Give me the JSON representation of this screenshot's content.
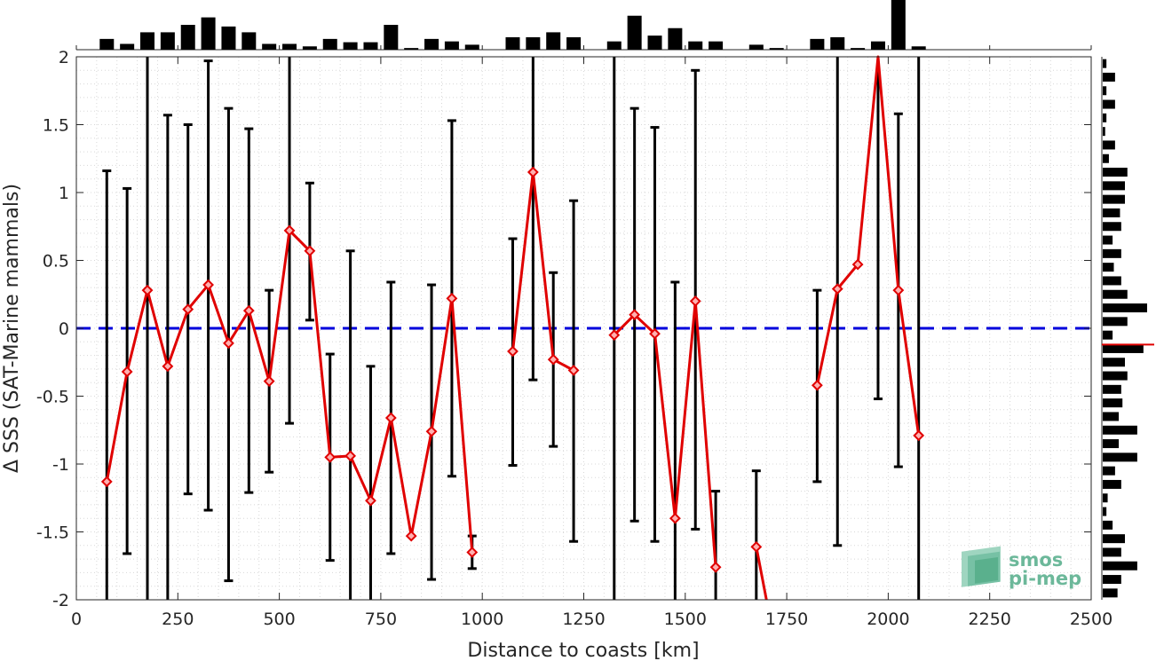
{
  "chart_data": {
    "type": "line",
    "xlabel": "Distance to coasts [km]",
    "ylabel": "Δ SSS (SAT-Marine mammals)",
    "xlim": [
      0,
      2500
    ],
    "ylim": [
      -2,
      2
    ],
    "xticks": [
      0,
      250,
      500,
      750,
      1000,
      1250,
      1500,
      1750,
      2000,
      2250,
      2500
    ],
    "xtick_labels": [
      "0",
      "250",
      "500",
      "750",
      "1000",
      "1250",
      "1500",
      "1750",
      "2000",
      "2250",
      "2500"
    ],
    "yticks": [
      -2,
      -1.5,
      -1,
      -0.5,
      0,
      0.5,
      1,
      1.5,
      2
    ],
    "ytick_labels": [
      "-2",
      "-1.5",
      "-1",
      "-0.5",
      "0",
      "0.5",
      "1",
      "1.5",
      "2"
    ],
    "grid": true,
    "reference_line": {
      "y": 0,
      "color": "#0000dd",
      "style": "dashed"
    },
    "series": [
      {
        "points": [
          {
            "x": 75,
            "y": -1.13,
            "lo": -2.0,
            "hi": 1.16
          },
          {
            "x": 125,
            "y": -0.32,
            "lo": -1.66,
            "hi": 1.03
          },
          {
            "x": 175,
            "y": 0.28,
            "lo": -2.0,
            "hi": 2.0
          },
          {
            "x": 225,
            "y": -0.28,
            "lo": -2.0,
            "hi": 1.57
          },
          {
            "x": 275,
            "y": 0.14,
            "lo": -1.22,
            "hi": 1.5
          },
          {
            "x": 325,
            "y": 0.32,
            "lo": -1.34,
            "hi": 1.97
          },
          {
            "x": 375,
            "y": -0.11,
            "lo": -1.86,
            "hi": 1.62
          },
          {
            "x": 425,
            "y": 0.13,
            "lo": -1.21,
            "hi": 1.47
          },
          {
            "x": 475,
            "y": -0.39,
            "lo": -1.06,
            "hi": 0.28
          },
          {
            "x": 525,
            "y": 0.72,
            "lo": -0.7,
            "hi": 2.0
          },
          {
            "x": 575,
            "y": 0.57,
            "lo": 0.06,
            "hi": 1.07
          },
          {
            "x": 625,
            "y": -0.95,
            "lo": -1.71,
            "hi": -0.19
          },
          {
            "x": 675,
            "y": -0.94,
            "lo": -2.0,
            "hi": 0.57
          },
          {
            "x": 725,
            "y": -1.27,
            "lo": -2.0,
            "hi": -0.28
          },
          {
            "x": 775,
            "y": -0.66,
            "lo": -1.66,
            "hi": 0.34
          },
          {
            "x": 825,
            "y": -1.53,
            "lo": null,
            "hi": null
          },
          {
            "x": 875,
            "y": -0.76,
            "lo": -1.85,
            "hi": 0.32
          },
          {
            "x": 925,
            "y": 0.22,
            "lo": -1.09,
            "hi": 1.53
          },
          {
            "x": 975,
            "y": -1.65,
            "lo": -1.77,
            "hi": -1.53
          },
          {
            "x": 1075,
            "y": -0.17,
            "lo": -1.01,
            "hi": 0.66
          },
          {
            "x": 1125,
            "y": 1.15,
            "lo": -0.38,
            "hi": 2.0
          },
          {
            "x": 1175,
            "y": -0.23,
            "lo": -0.87,
            "hi": 0.41
          },
          {
            "x": 1225,
            "y": -0.31,
            "lo": -1.57,
            "hi": 0.94
          },
          {
            "x": 1325,
            "y": -0.05,
            "lo": -2.0,
            "hi": 2.0
          },
          {
            "x": 1375,
            "y": 0.1,
            "lo": -1.42,
            "hi": 1.62
          },
          {
            "x": 1425,
            "y": -0.04,
            "lo": -1.57,
            "hi": 1.48
          },
          {
            "x": 1475,
            "y": -1.4,
            "lo": -2.0,
            "hi": 0.34
          },
          {
            "x": 1525,
            "y": 0.2,
            "lo": -1.48,
            "hi": 1.9
          },
          {
            "x": 1575,
            "y": -1.76,
            "lo": -2.0,
            "hi": -1.2
          },
          {
            "x": 1675,
            "y": -1.61,
            "lo": -2.0,
            "hi": -1.05
          },
          {
            "x": 1700,
            "y": -2.0,
            "lo": null,
            "hi": null
          },
          {
            "x": 1825,
            "y": -0.42,
            "lo": -1.13,
            "hi": 0.28
          },
          {
            "x": 1875,
            "y": 0.29,
            "lo": -1.6,
            "hi": 2.0
          },
          {
            "x": 1925,
            "y": 0.47,
            "lo": null,
            "hi": null
          },
          {
            "x": 1975,
            "y": 2.0,
            "lo": -0.52,
            "hi": 2.0
          },
          {
            "x": 2025,
            "y": 0.28,
            "lo": -1.02,
            "hi": 1.58
          },
          {
            "x": 2075,
            "y": -0.79,
            "lo": -2.0,
            "hi": 2.0
          }
        ],
        "color": "#e00000"
      }
    ],
    "segments": [
      [
        0,
        18
      ],
      [
        19,
        22
      ],
      [
        23,
        28
      ],
      [
        29,
        30
      ],
      [
        31,
        36
      ]
    ],
    "top_histogram": {
      "x": [
        75,
        125,
        175,
        225,
        275,
        325,
        375,
        425,
        475,
        525,
        575,
        625,
        675,
        725,
        775,
        825,
        875,
        925,
        975,
        1075,
        1125,
        1175,
        1225,
        1325,
        1375,
        1425,
        1475,
        1525,
        1575,
        1675,
        1725,
        1825,
        1875,
        1925,
        1975,
        2025,
        2075
      ],
      "counts": [
        13,
        7,
        21,
        21,
        30,
        39,
        28,
        21,
        7,
        7,
        4,
        13,
        9,
        9,
        30,
        2,
        13,
        10,
        6,
        15,
        15,
        21,
        15,
        10,
        41,
        17,
        26,
        10,
        10,
        6,
        2,
        13,
        15,
        2,
        10,
        60,
        4
      ]
    },
    "right_histogram": {
      "y": [
        1.95,
        1.85,
        1.75,
        1.65,
        1.55,
        1.45,
        1.35,
        1.25,
        1.15,
        1.05,
        0.95,
        0.85,
        0.75,
        0.65,
        0.55,
        0.45,
        0.35,
        0.25,
        0.15,
        0.05,
        -0.05,
        -0.15,
        -0.25,
        -0.35,
        -0.45,
        -0.55,
        -0.65,
        -0.75,
        -0.85,
        -0.95,
        -1.05,
        -1.15,
        -1.25,
        -1.35,
        -1.45,
        -1.55,
        -1.65,
        -1.75,
        -1.85,
        -1.95
      ],
      "counts": [
        3,
        10,
        3,
        10,
        3,
        2,
        10,
        5,
        20,
        18,
        18,
        14,
        15,
        8,
        15,
        9,
        15,
        20,
        36,
        20,
        8,
        33,
        18,
        20,
        15,
        16,
        13,
        28,
        13,
        28,
        10,
        15,
        4,
        3,
        8,
        18,
        15,
        28,
        15,
        12
      ],
      "mean_marker": {
        "y": -0.12,
        "color": "#e00000"
      }
    }
  },
  "logo": {
    "line1": "smos",
    "line2": "pi-mep"
  }
}
